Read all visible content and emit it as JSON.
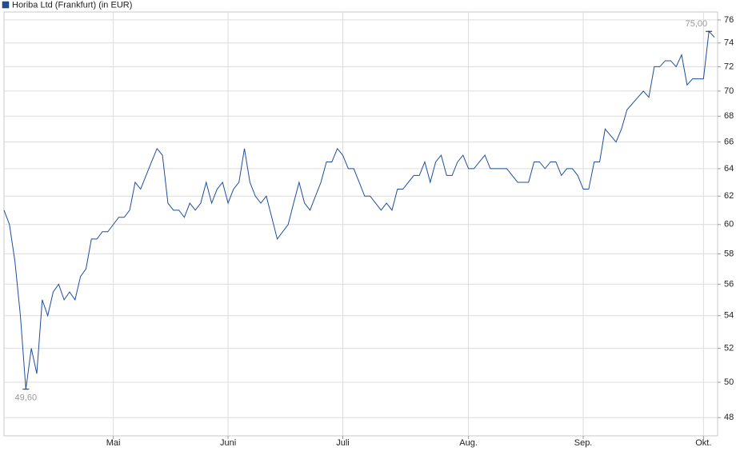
{
  "chart_data": {
    "type": "line",
    "log_scale": true,
    "grid": true,
    "legend_position": "top-left",
    "ylim": [
      47,
      76.7
    ],
    "yticks": [
      48,
      50,
      52,
      54,
      56,
      58,
      60,
      62,
      64,
      66,
      68,
      70,
      72,
      74,
      76
    ],
    "categories": [
      null,
      null,
      null,
      null,
      null,
      null,
      null,
      null,
      null,
      null,
      null,
      null,
      null,
      null,
      null,
      null,
      null,
      null,
      null,
      null,
      "Mai",
      null,
      null,
      null,
      null,
      null,
      null,
      null,
      null,
      null,
      null,
      null,
      null,
      null,
      null,
      null,
      null,
      null,
      null,
      null,
      null,
      "Juni",
      null,
      null,
      null,
      null,
      null,
      null,
      null,
      null,
      null,
      null,
      null,
      null,
      null,
      null,
      null,
      null,
      null,
      null,
      null,
      null,
      "Juli",
      null,
      null,
      null,
      null,
      null,
      null,
      null,
      null,
      null,
      null,
      null,
      null,
      null,
      null,
      null,
      null,
      null,
      null,
      null,
      null,
      null,
      null,
      "Aug.",
      null,
      null,
      null,
      null,
      null,
      null,
      null,
      null,
      null,
      null,
      null,
      null,
      null,
      null,
      null,
      null,
      null,
      null,
      null,
      null,
      "Sep.",
      null,
      null,
      null,
      null,
      null,
      null,
      null,
      null,
      null,
      null,
      null,
      null,
      null,
      null,
      null,
      null,
      null,
      null,
      null,
      null,
      null,
      "Okt.",
      null,
      null
    ],
    "series": [
      {
        "name": "Horiba Ltd (Frankfurt) (in EUR)",
        "color": "#1f4e9c",
        "values": [
          61,
          60,
          57.5,
          54,
          49.6,
          52,
          50.5,
          55,
          54,
          55.5,
          56,
          55,
          55.5,
          55,
          56.5,
          57,
          59,
          59,
          59.5,
          59.5,
          60,
          60.5,
          60.5,
          61,
          63,
          62.5,
          63.5,
          64.5,
          65.5,
          65,
          61.5,
          61,
          61,
          60.5,
          61.5,
          61,
          61.5,
          63,
          61.5,
          62.5,
          63,
          61.5,
          62.5,
          63,
          65.5,
          63,
          62,
          61.5,
          62,
          60.5,
          59,
          59.5,
          60,
          61.5,
          63,
          61.5,
          61,
          62,
          63,
          64.5,
          64.5,
          65.5,
          65,
          64,
          64,
          63,
          62,
          62,
          61.5,
          61,
          61.5,
          61,
          62.5,
          62.5,
          63,
          63.5,
          63.5,
          64.5,
          63,
          64.5,
          65,
          63.5,
          63.5,
          64.5,
          65,
          64,
          64,
          64.5,
          65,
          64,
          64,
          64,
          64,
          63.5,
          63,
          63,
          63,
          64.5,
          64.5,
          64,
          64.5,
          64.5,
          63.5,
          64,
          64,
          63.5,
          62.5,
          62.5,
          64.5,
          64.5,
          67,
          66.5,
          66,
          67,
          68.5,
          69,
          69.5,
          70,
          69.5,
          72,
          72,
          72.5,
          72.5,
          72,
          73,
          70.5,
          71,
          71,
          71,
          75,
          74.5
        ]
      }
    ],
    "annotations": [
      {
        "label": "75,00",
        "value": 75
      },
      {
        "label": "49,60",
        "value": 49.6
      }
    ]
  }
}
